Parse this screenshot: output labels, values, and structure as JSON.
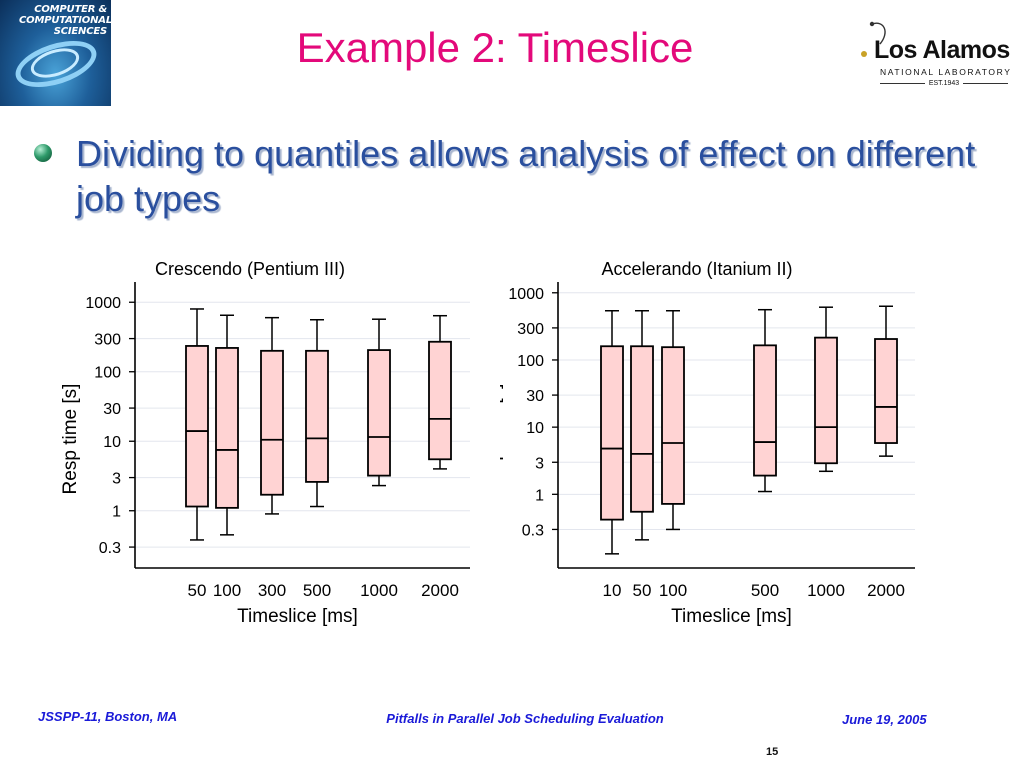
{
  "header": {
    "title": "Example 2: Timeslice",
    "left_logo_text": "COMPUTER & COMPUTATIONAL SCIENCES",
    "right_logo": {
      "name": "Los Alamos",
      "subtitle": "NATIONAL LABORATORY",
      "established": "EST.1943"
    }
  },
  "bullet": {
    "text": "Dividing to quantiles allows analysis of effect on different job types"
  },
  "footer": {
    "left": "JSSPP-11, Boston, MA",
    "center": "Pitfalls in Parallel Job Scheduling Evaluation",
    "right": "June 19, 2005",
    "page": "15"
  },
  "colors": {
    "title": "#e3097a",
    "bullet_text": "#2a4f9e",
    "footer_text": "#1a1ad8",
    "box_fill": "#ffd3d3"
  },
  "chart_data": [
    {
      "type": "box",
      "title": "Crescendo (Pentium III)",
      "xlabel": "Timeslice [ms]",
      "ylabel": "Resp time [s]",
      "y_scale": "log",
      "ylim": [
        0.15,
        1500
      ],
      "y_ticks": [
        0.3,
        1,
        3,
        10,
        30,
        100,
        300,
        1000
      ],
      "y_tick_labels": [
        "0.3",
        "1",
        "3",
        "10",
        "30",
        "100",
        "300",
        "1000"
      ],
      "grid": true,
      "categories": [
        "50",
        "100",
        "300",
        "500",
        "1000",
        "2000"
      ],
      "boxes": [
        {
          "label": "50",
          "whisker_low": 0.38,
          "q1": 1.15,
          "median": 14,
          "q3": 235,
          "whisker_high": 800
        },
        {
          "label": "100",
          "whisker_low": 0.45,
          "q1": 1.1,
          "median": 7.5,
          "q3": 220,
          "whisker_high": 650
        },
        {
          "label": "300",
          "whisker_low": 0.9,
          "q1": 1.7,
          "median": 10.5,
          "q3": 200,
          "whisker_high": 600
        },
        {
          "label": "500",
          "whisker_low": 1.15,
          "q1": 2.6,
          "median": 11,
          "q3": 200,
          "whisker_high": 560
        },
        {
          "label": "1000",
          "whisker_low": 2.3,
          "q1": 3.2,
          "median": 11.5,
          "q3": 205,
          "whisker_high": 570
        },
        {
          "label": "2000",
          "whisker_low": 4.0,
          "q1": 5.5,
          "median": 21,
          "q3": 270,
          "whisker_high": 640
        }
      ]
    },
    {
      "type": "box",
      "title": "Accelerando (Itanium II)",
      "xlabel": "Timeslice [ms]",
      "ylabel": "Resp time [s]",
      "y_scale": "log",
      "ylim": [
        0.08,
        1100
      ],
      "y_ticks": [
        0.3,
        1,
        3,
        10,
        30,
        100,
        300,
        1000
      ],
      "y_tick_labels": [
        "0.3",
        "1",
        "3",
        "10",
        "30",
        "100",
        "300",
        "1000"
      ],
      "grid": true,
      "categories": [
        "10",
        "50",
        "100",
        "500",
        "1000",
        "2000"
      ],
      "boxes": [
        {
          "label": "10",
          "whisker_low": 0.13,
          "q1": 0.42,
          "median": 4.8,
          "q3": 160,
          "whisker_high": 540
        },
        {
          "label": "50",
          "whisker_low": 0.21,
          "q1": 0.55,
          "median": 4.0,
          "q3": 160,
          "whisker_high": 540
        },
        {
          "label": "100",
          "whisker_low": 0.3,
          "q1": 0.72,
          "median": 5.8,
          "q3": 155,
          "whisker_high": 540
        },
        {
          "label": "500",
          "whisker_low": 1.1,
          "q1": 1.9,
          "median": 6.0,
          "q3": 165,
          "whisker_high": 560
        },
        {
          "label": "1000",
          "whisker_low": 2.2,
          "q1": 2.9,
          "median": 10,
          "q3": 215,
          "whisker_high": 610
        },
        {
          "label": "2000",
          "whisker_low": 3.7,
          "q1": 5.8,
          "median": 20,
          "q3": 205,
          "whisker_high": 630
        }
      ]
    }
  ]
}
